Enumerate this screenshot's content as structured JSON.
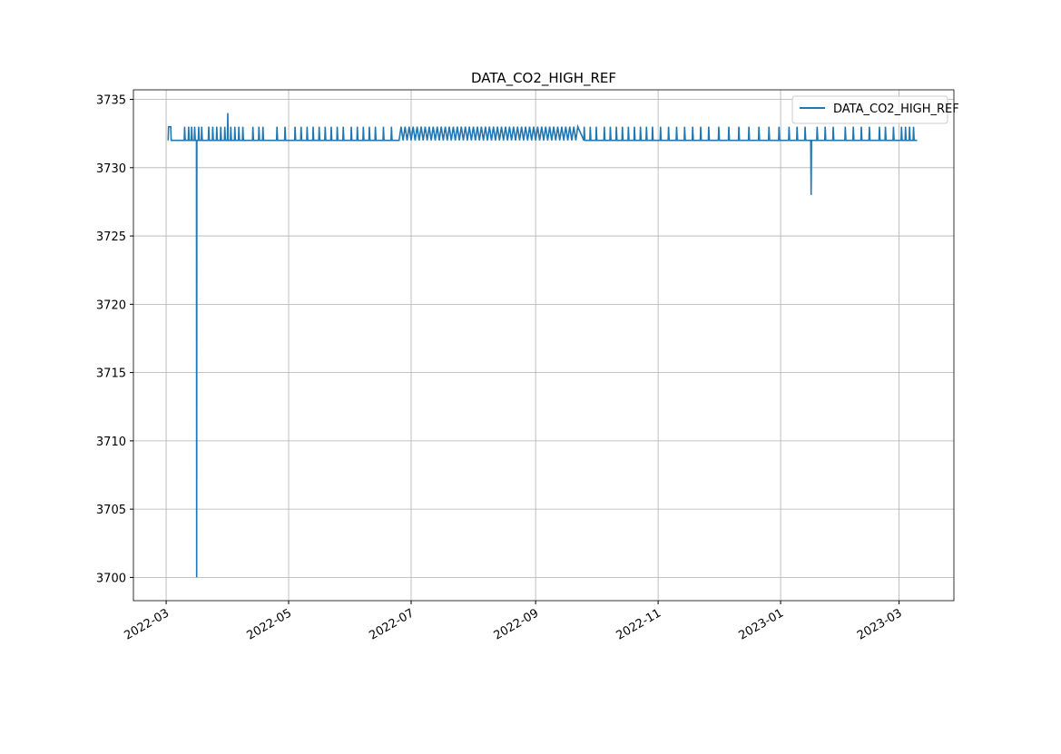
{
  "chart_data": {
    "type": "line",
    "title": "DATA_CO2_HIGH_REF",
    "series": [
      {
        "name": "DATA_CO2_HIGH_REF",
        "color": "#1f77b4",
        "x": [
          1,
          1.2,
          2.3,
          2.5,
          9,
          9.2,
          9.5,
          11,
          11.2,
          11.5,
          12.5,
          12.7,
          13,
          14,
          14.2,
          14.5,
          15.1,
          15.2,
          15.3,
          16,
          16.2,
          16.5,
          17.5,
          17.7,
          18,
          21,
          21.2,
          21.5,
          23,
          23.2,
          23.5,
          25,
          25.2,
          25.5,
          27,
          27.2,
          27.5,
          29,
          29.2,
          29.5,
          30.5,
          30.7,
          30.9,
          32,
          32.2,
          32.5,
          34,
          34.2,
          34.5,
          36,
          36.2,
          36.5,
          38,
          38.2,
          38.5,
          43,
          43.2,
          43.5,
          46,
          46.2,
          46.5,
          48,
          48.2,
          48.5,
          55,
          55.2,
          55.5,
          59,
          59.2,
          59.5,
          64,
          64.2,
          64.5,
          67,
          67.2,
          67.5,
          70,
          70.2,
          70.5,
          73,
          73.2,
          73.5,
          76,
          76.2,
          76.5,
          79,
          79.2,
          79.5,
          82,
          82.2,
          82.5,
          85,
          85.2,
          85.5,
          88,
          88.2,
          88.5,
          92,
          92.2,
          92.5,
          95,
          95.2,
          95.5,
          98,
          98.2,
          98.5,
          101,
          101.2,
          101.5,
          104,
          104.2,
          104.5,
          108,
          108.2,
          108.5,
          112,
          112.2,
          112.5,
          116,
          117,
          118,
          119,
          120,
          121,
          122,
          123,
          124,
          125,
          126,
          127,
          128,
          129,
          130,
          131,
          132,
          133,
          134,
          135,
          136,
          137,
          138,
          139,
          140,
          141,
          142,
          143,
          144,
          145,
          146,
          147,
          148,
          149,
          150,
          151,
          152,
          153,
          154,
          155,
          156,
          157,
          158,
          159,
          160,
          161,
          162,
          163,
          164,
          165,
          166,
          167,
          168,
          169,
          170,
          171,
          172,
          173,
          174,
          175,
          176,
          177,
          178,
          179,
          180,
          181,
          182,
          183,
          184,
          185,
          186,
          187,
          188,
          189,
          190,
          191,
          192,
          193,
          194,
          195,
          196,
          197,
          198,
          199,
          200,
          201,
          202,
          203,
          204,
          205,
          208,
          208.2,
          208.5,
          211,
          211.2,
          211.5,
          214,
          214.2,
          214.5,
          218,
          218.2,
          218.5,
          221,
          221.2,
          221.5,
          224,
          224.2,
          224.5,
          227,
          227.2,
          227.5,
          230,
          230.2,
          230.5,
          233,
          233.2,
          233.5,
          236,
          236.2,
          236.5,
          239,
          239.2,
          239.5,
          242,
          242.2,
          242.5,
          246,
          246.2,
          246.5,
          250,
          250.2,
          250.5,
          254,
          254.2,
          254.5,
          258,
          258.2,
          258.5,
          262,
          262.2,
          262.5,
          266,
          266.2,
          266.5,
          270,
          270.2,
          270.5,
          275,
          275.2,
          275.5,
          280,
          280.2,
          280.5,
          285,
          285.2,
          285.5,
          290,
          290.2,
          290.5,
          295,
          295.2,
          295.5,
          300,
          300.2,
          300.5,
          305,
          305.2,
          305.5,
          310,
          310.2,
          310.5,
          314,
          314.2,
          314.5,
          318,
          318.2,
          318.5,
          321,
          321.2,
          321.4,
          324,
          324.2,
          324.5,
          328,
          328.2,
          328.5,
          332,
          332.2,
          332.5,
          338,
          338.2,
          338.5,
          342,
          342.2,
          342.5,
          346,
          346.2,
          346.5,
          350,
          350.2,
          350.5,
          355,
          355.2,
          355.5,
          358,
          358.2,
          358.5,
          362,
          362.2,
          362.5,
          366,
          366.2,
          366.5,
          368,
          368.2,
          368.5,
          370,
          370.2,
          370.5,
          372,
          372.2,
          372.5,
          374
        ],
        "values": [
          3732,
          3733,
          3733,
          3732,
          3732,
          3733,
          3732,
          3732,
          3733,
          3732,
          3732,
          3733,
          3732,
          3732,
          3733,
          3732,
          3732,
          3700,
          3732,
          3732,
          3733,
          3732,
          3732,
          3733,
          3732,
          3732,
          3733,
          3732,
          3732,
          3733,
          3732,
          3732,
          3733,
          3732,
          3732,
          3733,
          3732,
          3732,
          3733,
          3732,
          3732,
          3734,
          3732,
          3732,
          3733,
          3732,
          3732,
          3733,
          3732,
          3732,
          3733,
          3732,
          3732,
          3733,
          3732,
          3732,
          3733,
          3732,
          3732,
          3733,
          3732,
          3732,
          3733,
          3732,
          3732,
          3733,
          3732,
          3732,
          3733,
          3732,
          3732,
          3733,
          3732,
          3732,
          3733,
          3732,
          3732,
          3733,
          3732,
          3732,
          3733,
          3732,
          3732,
          3733,
          3732,
          3732,
          3733,
          3732,
          3732,
          3733,
          3732,
          3732,
          3733,
          3732,
          3732,
          3733,
          3732,
          3732,
          3733,
          3732,
          3732,
          3733,
          3732,
          3732,
          3733,
          3732,
          3732,
          3733,
          3732,
          3732,
          3733,
          3732,
          3732,
          3733,
          3732,
          3732,
          3733,
          3732,
          3732,
          3733,
          3732,
          3733,
          3732,
          3733,
          3732,
          3733,
          3732,
          3733,
          3732,
          3733,
          3732,
          3733,
          3732,
          3733,
          3732,
          3733,
          3732,
          3733,
          3732,
          3733,
          3732,
          3733,
          3732,
          3733,
          3732,
          3733,
          3732,
          3733,
          3732,
          3733,
          3732,
          3733,
          3732,
          3733,
          3732,
          3733,
          3732,
          3733,
          3732,
          3733,
          3732,
          3733,
          3732,
          3733,
          3732,
          3733,
          3732,
          3733,
          3732,
          3733,
          3732,
          3733,
          3732,
          3733,
          3732,
          3733,
          3732,
          3733,
          3732,
          3733,
          3732,
          3733,
          3732,
          3733,
          3732,
          3733,
          3732,
          3733,
          3732,
          3733,
          3732,
          3733,
          3732,
          3733,
          3732,
          3733,
          3732,
          3733,
          3732,
          3733,
          3732,
          3733,
          3732,
          3733,
          3732,
          3733,
          3732,
          3733,
          3732,
          3733,
          3732,
          3732,
          3733,
          3732,
          3732,
          3733,
          3732,
          3732,
          3733,
          3732,
          3732,
          3733,
          3732,
          3732,
          3733,
          3732,
          3732,
          3733,
          3732,
          3732,
          3733,
          3732,
          3732,
          3733,
          3732,
          3732,
          3733,
          3732,
          3732,
          3733,
          3732,
          3732,
          3733,
          3732,
          3732,
          3733,
          3732,
          3732,
          3733,
          3732,
          3732,
          3733,
          3732,
          3732,
          3733,
          3732,
          3732,
          3733,
          3732,
          3732,
          3733,
          3732,
          3732,
          3733,
          3732,
          3732,
          3733,
          3732,
          3732,
          3733,
          3732,
          3732,
          3733,
          3732,
          3732,
          3733,
          3732,
          3732,
          3733,
          3732,
          3732,
          3733,
          3732,
          3732,
          3733,
          3732,
          3732,
          3733,
          3732,
          3732,
          3733,
          3732,
          3732,
          3733,
          3732,
          3732,
          3728,
          3732,
          3732,
          3733,
          3732,
          3732,
          3733,
          3732,
          3732,
          3733,
          3732,
          3732,
          3733,
          3732,
          3732,
          3733,
          3732,
          3732,
          3733,
          3732,
          3732,
          3733,
          3732,
          3732,
          3733,
          3732,
          3732,
          3733,
          3732,
          3732,
          3733,
          3732,
          3732,
          3733,
          3732,
          3732,
          3733,
          3732,
          3732,
          3733,
          3732,
          3732,
          3733,
          3732,
          3732
        ]
      }
    ],
    "xlim": [
      -16.3,
      392.3
    ],
    "xticks": [
      {
        "value": 0,
        "label": "2022-03"
      },
      {
        "value": 61,
        "label": "2022-05"
      },
      {
        "value": 122,
        "label": "2022-07"
      },
      {
        "value": 184,
        "label": "2022-09"
      },
      {
        "value": 245,
        "label": "2022-11"
      },
      {
        "value": 306,
        "label": "2023-01"
      },
      {
        "value": 365,
        "label": "2023-03"
      }
    ],
    "ylim": [
      3698.3,
      3735.7
    ],
    "yticks": [
      3700,
      3705,
      3710,
      3715,
      3720,
      3725,
      3730,
      3735
    ],
    "grid": true,
    "legend": "upper right"
  }
}
